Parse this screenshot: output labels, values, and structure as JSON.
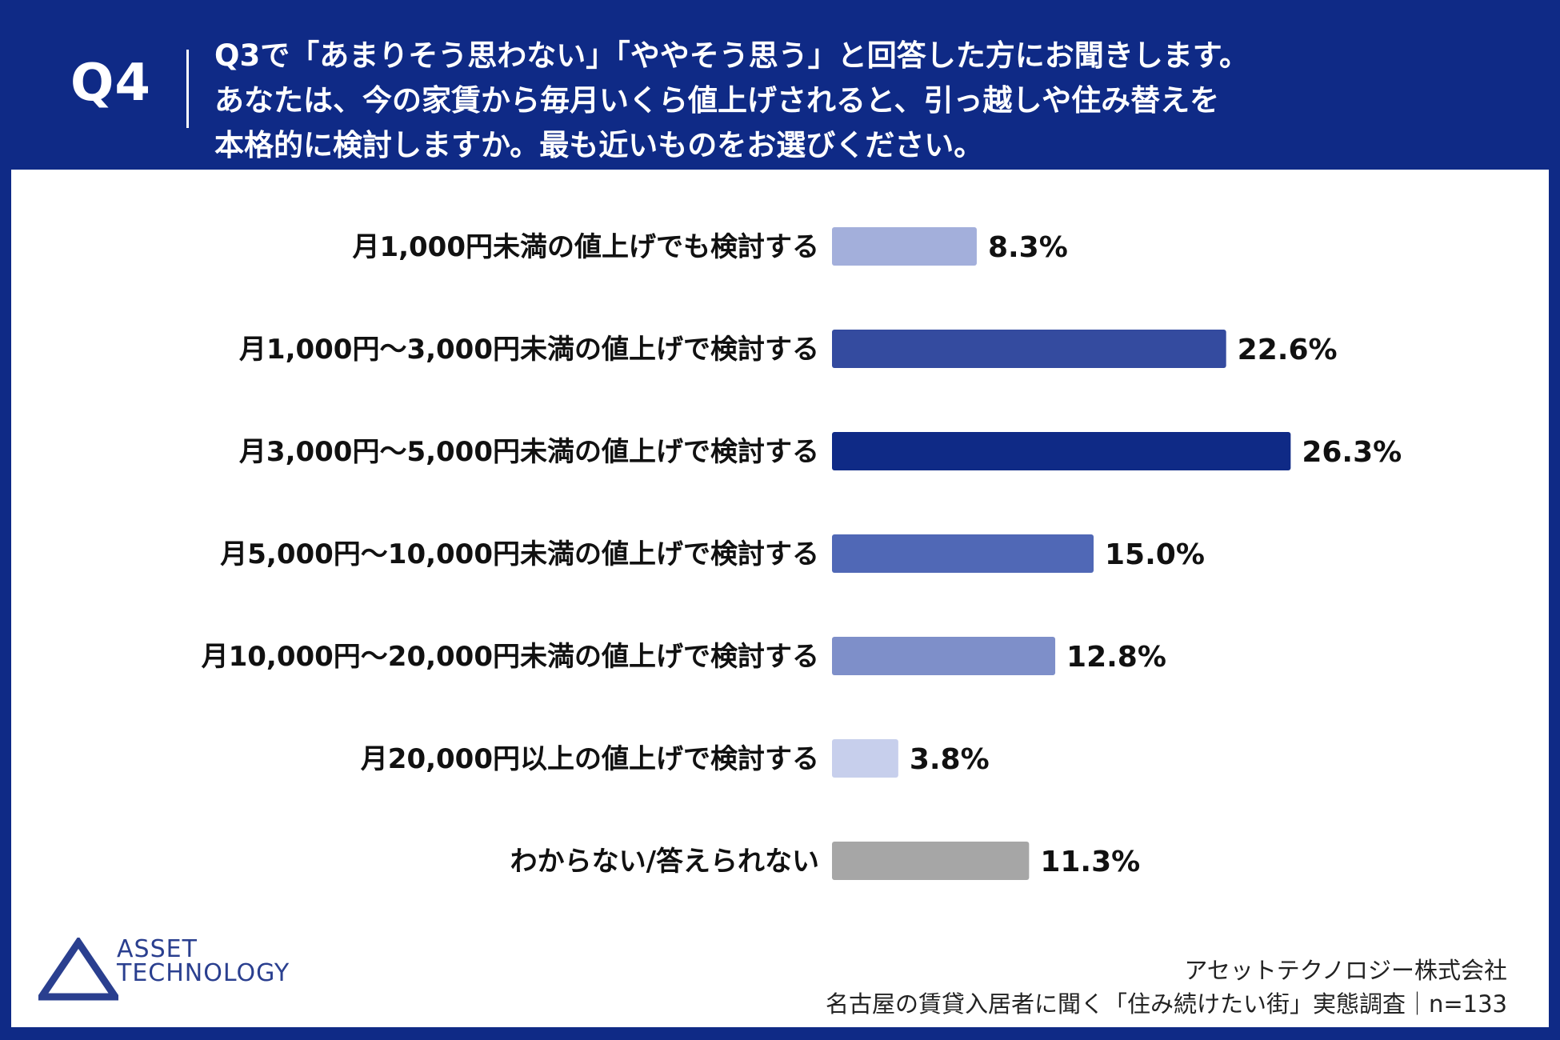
{
  "header": {
    "question_number": "Q4",
    "question_lines": [
      "Q3で「あまりそう思わない」「ややそう思う」と回答した方にお聞きします。",
      "あなたは、今の家賃から毎月いくら値上げされると、引っ越しや住み替えを",
      "本格的に検討しますか。最も近いものをお選びください。"
    ]
  },
  "chart_data": {
    "type": "bar",
    "orientation": "horizontal",
    "categories": [
      "月1,000円未満の値上げでも検討する",
      "月1,000円〜3,000円未満の値上げで検討する",
      "月3,000円〜5,000円未満の値上げで検討する",
      "月5,000円〜10,000円未満の値上げで検討する",
      "月10,000円〜20,000円未満の値上げで検討する",
      "月20,000円以上の値上げで検討する",
      "わからない/答えられない"
    ],
    "values": [
      8.3,
      22.6,
      26.3,
      15.0,
      12.8,
      3.8,
      11.3
    ],
    "value_labels": [
      "8.3%",
      "22.6%",
      "26.3%",
      "15.0%",
      "12.8%",
      "3.8%",
      "11.3%"
    ],
    "colors": [
      "#a3afdb",
      "#344b9f",
      "#0f2a86",
      "#5068b6",
      "#7e8fc9",
      "#c7cfec",
      "#a6a6a6"
    ],
    "unit": "%",
    "grid": false,
    "legend": "none"
  },
  "logo": {
    "line1": "ASSET",
    "line2": "TECHNOLOGY",
    "icon": "triangle-logo-icon",
    "color": "#2a3f8f"
  },
  "footer": {
    "company": "アセットテクノロジー株式会社",
    "survey": "名古屋の賃貸入居者に聞く「住み続けたい街」実態調査｜n=133"
  },
  "theme": {
    "frame_color": "#0f2a86",
    "panel_color": "#ffffff"
  }
}
